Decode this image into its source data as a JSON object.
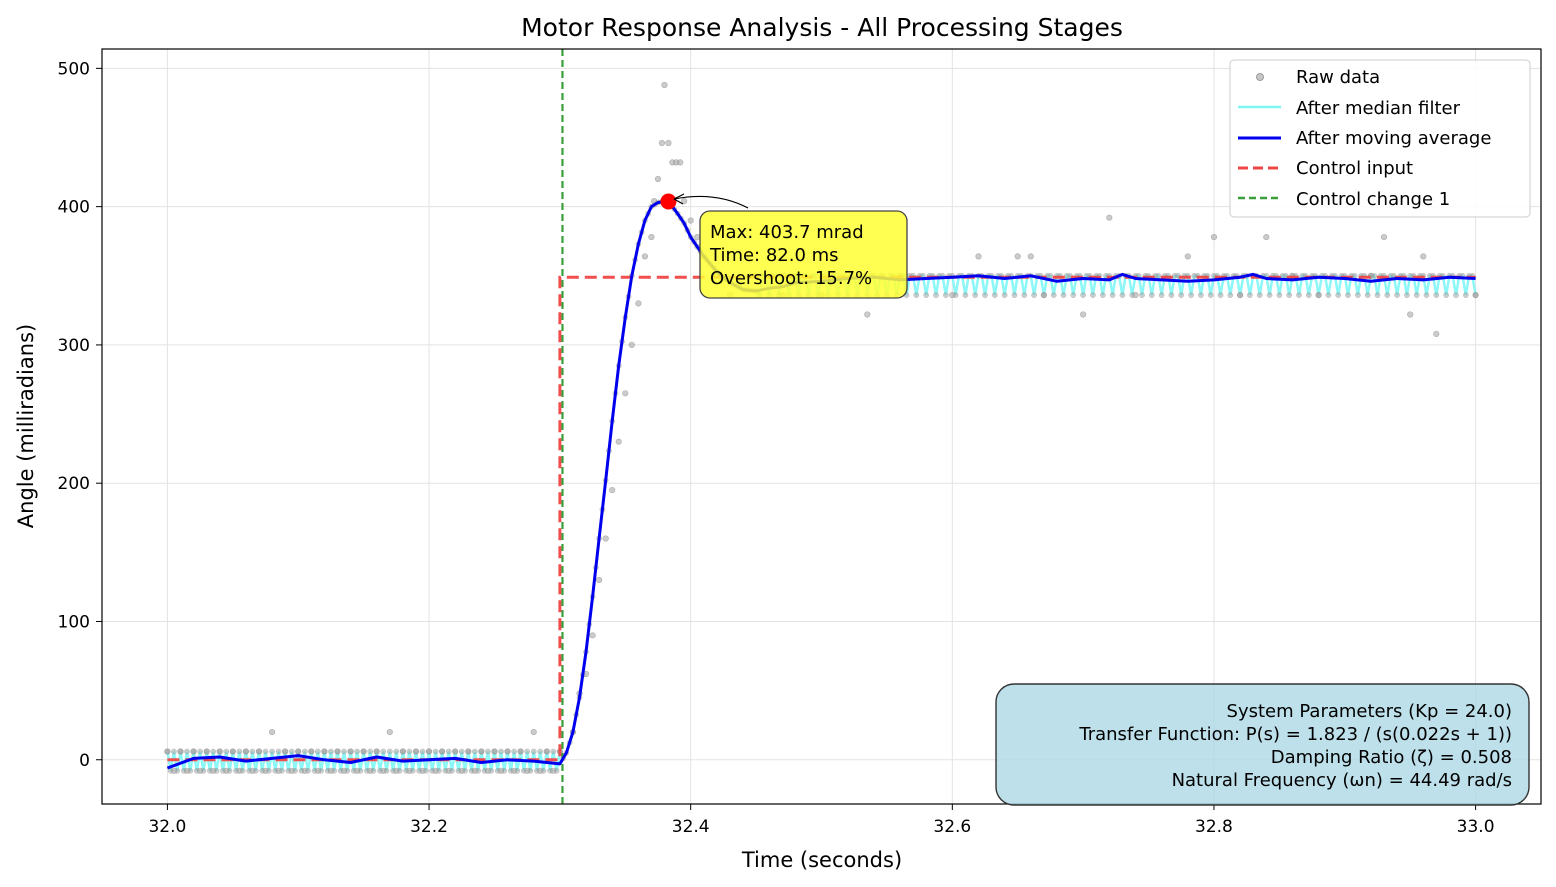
{
  "chart_data": {
    "type": "line",
    "title": "Motor Response Analysis - All Processing Stages",
    "xlabel": "Time (seconds)",
    "ylabel": "Angle (milliradians)",
    "xlim": [
      31.95,
      33.05
    ],
    "ylim": [
      -32,
      514
    ],
    "x_ticks": [
      32.0,
      32.2,
      32.4,
      32.6,
      32.8,
      33.0
    ],
    "x_tick_labels": [
      "32.0",
      "32.2",
      "32.4",
      "32.6",
      "32.8",
      "33.0"
    ],
    "y_ticks": [
      0,
      100,
      200,
      300,
      400,
      500
    ],
    "y_tick_labels": [
      "0",
      "100",
      "200",
      "300",
      "400",
      "500"
    ],
    "grid": true,
    "legend_position": "top-right",
    "legend": [
      {
        "label": "Raw data",
        "style": "marker",
        "color": "#a0a0a0"
      },
      {
        "label": "After median filter",
        "style": "line",
        "color": "#7ff6f6"
      },
      {
        "label": "After moving average",
        "style": "line",
        "color": "#0000ee"
      },
      {
        "label": "Control input",
        "style": "dashed",
        "color": "#f04545"
      },
      {
        "label": "Control change 1",
        "style": "dashed",
        "color": "#3a9e3a"
      }
    ],
    "series": [
      {
        "name": "After moving average",
        "color": "#0000ee",
        "x": [
          32.0,
          32.02,
          32.04,
          32.06,
          32.08,
          32.1,
          32.12,
          32.14,
          32.16,
          32.18,
          32.2,
          32.22,
          32.24,
          32.26,
          32.28,
          32.29,
          32.3,
          32.305,
          32.31,
          32.315,
          32.32,
          32.325,
          32.33,
          32.335,
          32.34,
          32.345,
          32.35,
          32.355,
          32.36,
          32.365,
          32.37,
          32.375,
          32.38,
          32.383,
          32.386,
          32.39,
          32.395,
          32.4,
          32.41,
          32.42,
          32.43,
          32.44,
          32.45,
          32.46,
          32.47,
          32.48,
          32.5,
          32.52,
          32.54,
          32.56,
          32.58,
          32.6,
          32.62,
          32.64,
          32.66,
          32.68,
          32.7,
          32.72,
          32.73,
          32.74,
          32.76,
          32.78,
          32.8,
          32.82,
          32.83,
          32.84,
          32.86,
          32.88,
          32.9,
          32.92,
          32.94,
          32.96,
          32.98,
          33.0
        ],
        "y": [
          -6,
          1,
          2,
          -1,
          1,
          3,
          0,
          -2,
          2,
          -1,
          0,
          1,
          -2,
          0,
          -1,
          -2,
          -3,
          5,
          20,
          45,
          78,
          118,
          160,
          202,
          245,
          285,
          320,
          350,
          373,
          390,
          400,
          403,
          403.7,
          403,
          400,
          395,
          388,
          378,
          364,
          353,
          345,
          340,
          339,
          341,
          342,
          345,
          346,
          348,
          349,
          347,
          348,
          349,
          350,
          348,
          350,
          346,
          348,
          347,
          351,
          348,
          347,
          346,
          347,
          349,
          351,
          348,
          347,
          349,
          348,
          346,
          348,
          347,
          349,
          348
        ]
      },
      {
        "name": "Control input",
        "color": "#f04545",
        "x": [
          32.0,
          32.3,
          32.3,
          33.0
        ],
        "y": [
          0,
          0,
          349,
          349
        ]
      }
    ],
    "control_change_1_x": 32.302,
    "peak": {
      "x": 32.383,
      "y": 403.7
    },
    "raw_data_samples": {
      "x": [
        32.0,
        32.005,
        32.01,
        32.015,
        32.02,
        32.025,
        32.03,
        32.035,
        32.04,
        32.045,
        32.05,
        32.055,
        32.06,
        32.065,
        32.07,
        32.075,
        32.08,
        32.085,
        32.09,
        32.095,
        32.1,
        32.105,
        32.11,
        32.115,
        32.12,
        32.125,
        32.13,
        32.135,
        32.14,
        32.145,
        32.15,
        32.155,
        32.16,
        32.165,
        32.17,
        32.175,
        32.18,
        32.185,
        32.19,
        32.195,
        32.2,
        32.205,
        32.21,
        32.215,
        32.22,
        32.225,
        32.23,
        32.235,
        32.24,
        32.245,
        32.25,
        32.255,
        32.26,
        32.265,
        32.27,
        32.275,
        32.28,
        32.285,
        32.29,
        32.295,
        32.3,
        32.31,
        32.315,
        32.32,
        32.325,
        32.33,
        32.335,
        32.34,
        32.345,
        32.35,
        32.355,
        32.36,
        32.365,
        32.37,
        32.372,
        32.375,
        32.378,
        32.38,
        32.383,
        32.386,
        32.389,
        32.392,
        32.395,
        32.4,
        32.405,
        32.41,
        32.42,
        32.43,
        32.45,
        32.47,
        32.5,
        32.535,
        32.56,
        32.6,
        32.62,
        32.65,
        32.66,
        32.67,
        32.7,
        32.72,
        32.74,
        32.78,
        32.8,
        32.82,
        32.84,
        32.86,
        32.88,
        32.92,
        32.93,
        32.95,
        32.96,
        32.97,
        33.0
      ],
      "y": [
        6,
        -8,
        6,
        -8,
        6,
        -8,
        6,
        -8,
        6,
        -8,
        6,
        -8,
        6,
        -8,
        6,
        -8,
        20,
        -8,
        6,
        -8,
        6,
        -8,
        6,
        -8,
        6,
        -8,
        6,
        -8,
        6,
        -8,
        6,
        -8,
        6,
        -8,
        20,
        -8,
        6,
        -8,
        6,
        -8,
        6,
        -8,
        6,
        -8,
        6,
        -8,
        6,
        -8,
        6,
        -8,
        6,
        -8,
        6,
        -8,
        6,
        -8,
        20,
        -8,
        6,
        -8,
        6,
        20,
        48,
        62,
        90,
        130,
        160,
        195,
        230,
        265,
        300,
        330,
        364,
        378,
        404,
        420,
        446,
        488,
        446,
        432,
        432,
        432,
        404,
        390,
        378,
        364,
        350,
        336,
        350,
        336,
        336,
        322,
        350,
        336,
        364,
        364,
        364,
        336,
        322,
        392,
        336,
        364,
        378,
        336,
        378,
        350,
        336,
        350,
        378,
        322,
        364,
        308,
        336
      ]
    }
  },
  "annotation": {
    "line1": "Max: 403.7 mrad",
    "line2": "Time: 82.0 ms",
    "line3": "Overshoot: 15.7%"
  },
  "info_box": {
    "line1": "System Parameters (Kp = 24.0)",
    "line2": "Transfer Function: P(s) = 1.823 / (s(0.022s + 1))",
    "line3": "Damping Ratio (ζ) = 0.508",
    "line4": "Natural Frequency (ωn) = 44.49 rad/s"
  },
  "colors": {
    "raw": "#a0a0a0",
    "median": "#7ff6f6",
    "moving_average": "#0000ee",
    "control_input": "#f04545",
    "control_change": "#3a9e3a",
    "peak_marker": "#ff0000",
    "annotation_bg": "#ffff33",
    "info_bg": "#add8e6"
  }
}
